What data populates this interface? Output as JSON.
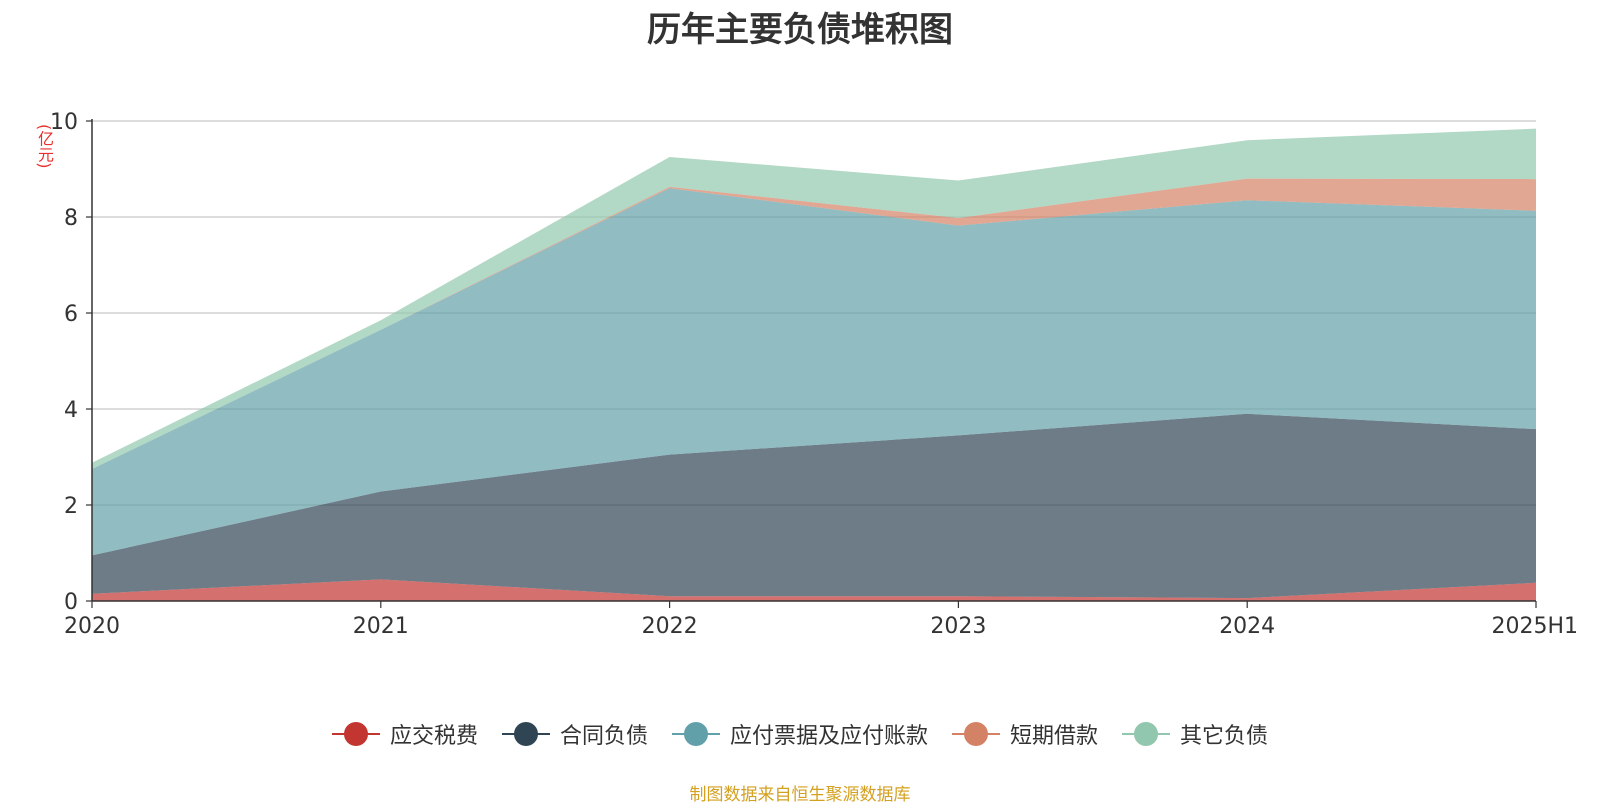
{
  "chart_data": {
    "type": "area",
    "stacked": true,
    "title": "历年主要负债堆积图",
    "ylabel": "(亿元)",
    "categories": [
      "2020",
      "2021",
      "2022",
      "2023",
      "2024",
      "2025H1"
    ],
    "ylim": [
      0,
      10
    ],
    "yticks": [
      0,
      2,
      4,
      6,
      8,
      10
    ],
    "grid": true,
    "legend_position": "bottom",
    "series": [
      {
        "name": "应交税费",
        "color": "#c23531",
        "values": [
          0.15,
          0.45,
          0.1,
          0.1,
          0.06,
          0.38
        ]
      },
      {
        "name": "合同负债",
        "color": "#2f4554",
        "values": [
          0.8,
          1.83,
          2.95,
          3.35,
          3.84,
          3.2
        ]
      },
      {
        "name": "应付票据及应付账款",
        "color": "#61a0a8",
        "values": [
          1.8,
          3.37,
          5.55,
          4.37,
          4.45,
          4.55
        ]
      },
      {
        "name": "短期借款",
        "color": "#d48265",
        "values": [
          0.0,
          0.0,
          0.03,
          0.16,
          0.45,
          0.66
        ]
      },
      {
        "name": "其它负债",
        "color": "#91c7ae",
        "values": [
          0.13,
          0.2,
          0.62,
          0.78,
          0.8,
          1.05
        ]
      }
    ]
  },
  "footer": {
    "source_note": "制图数据来自恒生聚源数据库"
  }
}
